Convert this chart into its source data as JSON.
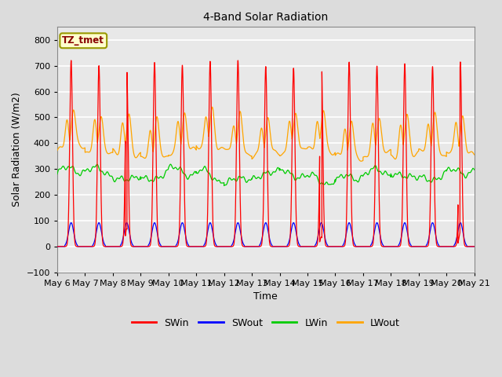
{
  "title": "4-Band Solar Radiation",
  "xlabel": "Time",
  "ylabel": "Solar Radiation (W/m2)",
  "ylim": [
    -100,
    850
  ],
  "yticks": [
    -100,
    0,
    100,
    200,
    300,
    400,
    500,
    600,
    700,
    800
  ],
  "num_days": 15,
  "xtick_labels": [
    "May 6",
    "May 7",
    "May 8",
    "May 9",
    "May 10",
    "May 11",
    "May 12",
    "May 13",
    "May 14",
    "May 15",
    "May 16",
    "May 17",
    "May 18",
    "May 19",
    "May 20",
    "May 21"
  ],
  "colors": {
    "SWin": "#ff0000",
    "SWout": "#0000ff",
    "LWin": "#00cc00",
    "LWout": "#ffa500"
  },
  "bg_color": "#dcdcdc",
  "plot_bg_color": "#e8e8e8",
  "annotation_box_bg": "#ffffcc",
  "annotation_box_edge": "#999900",
  "annotation_text": "TZ_tmet",
  "annotation_text_color": "#880000",
  "swin_peak": 725,
  "swout_peak": 92,
  "lwin_base": 275,
  "lwin_amp": 25,
  "lwout_base": 360,
  "lwout_peak": 510
}
